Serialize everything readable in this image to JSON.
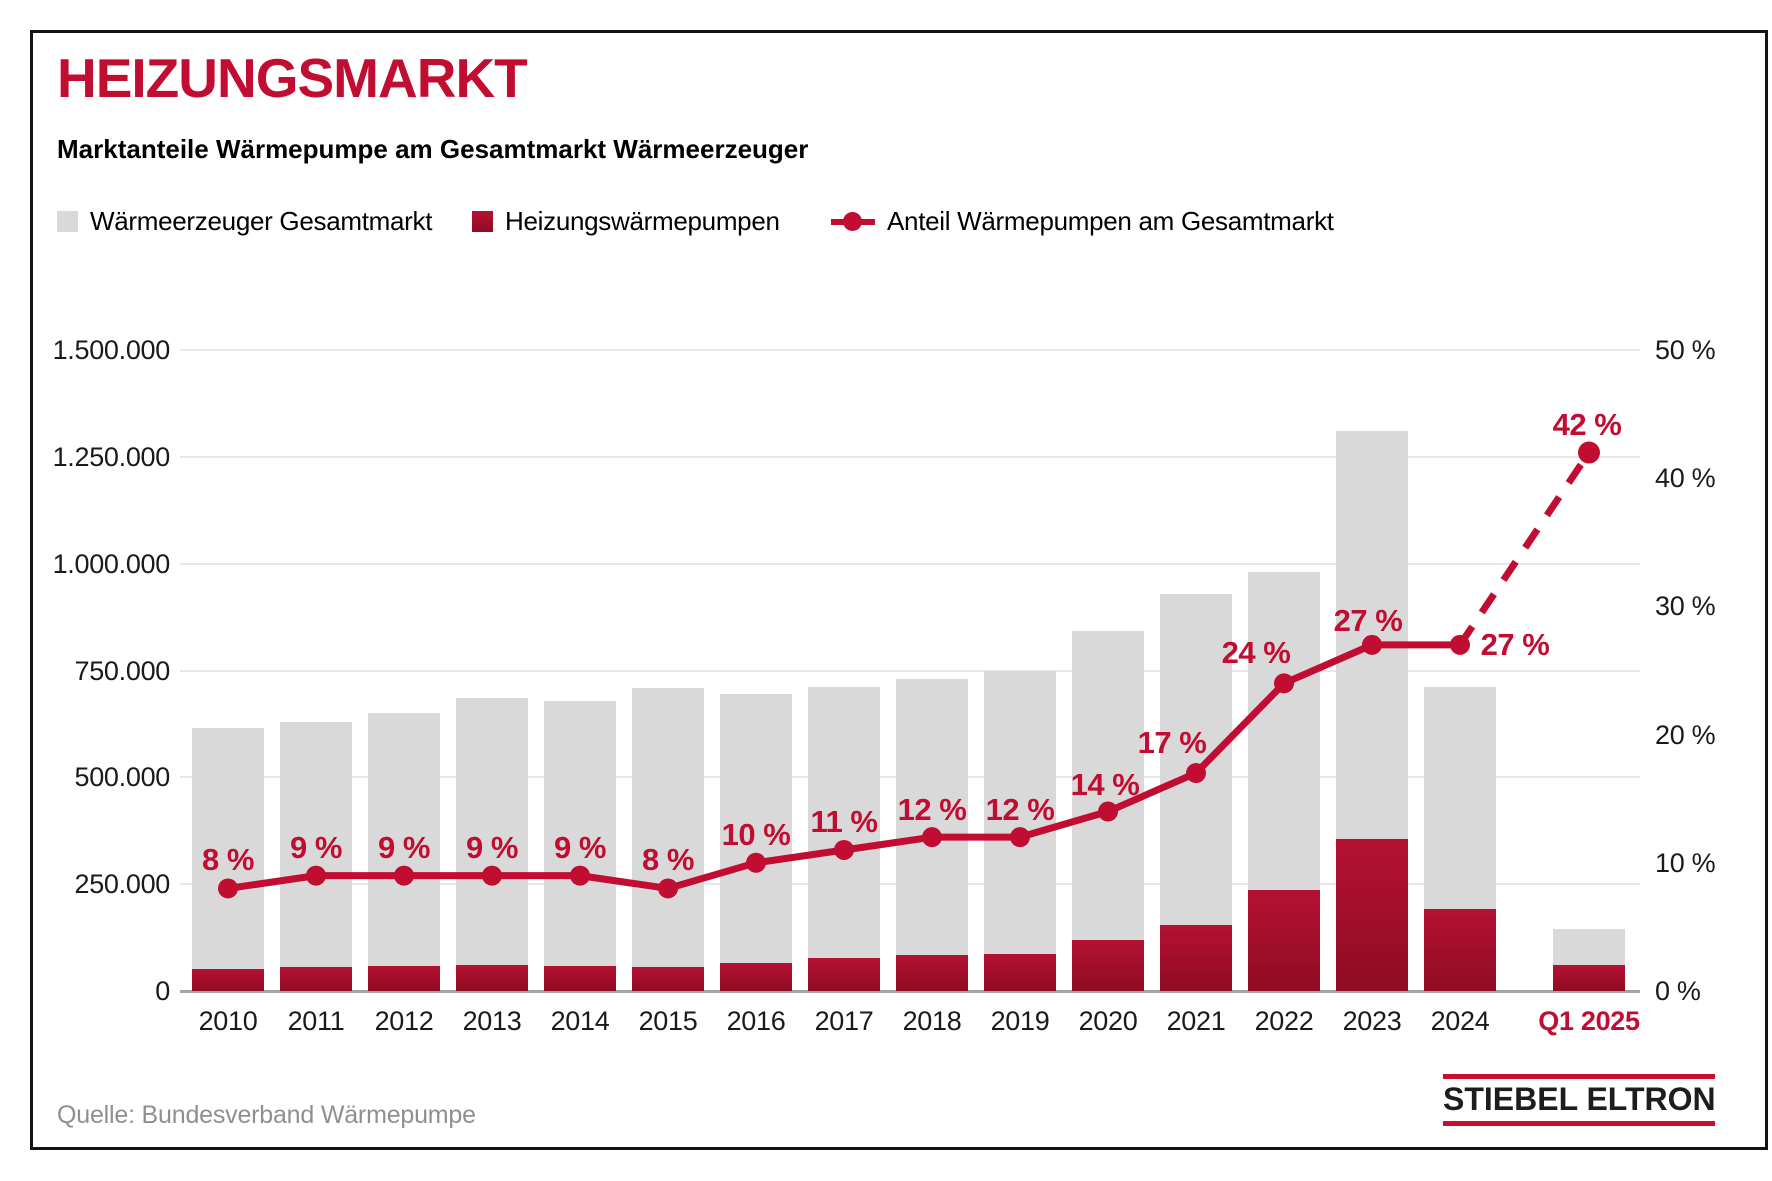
{
  "header": {
    "title": "HEIZUNGSMARKT",
    "subtitle": "Marktanteile Wärmepumpe am Gesamtmarkt Wärmeerzeuger"
  },
  "legend": [
    {
      "label": "Wärmeerzeuger Gesamtmarkt",
      "swatch": "grey-square",
      "color": "#d9d9d9"
    },
    {
      "label": "Heizungswärmepumpen",
      "swatch": "red-square",
      "color": "#a50e29"
    },
    {
      "label": "Anteil Wärmepumpen am Gesamtmarkt",
      "swatch": "line-marker",
      "color": "#c20d33"
    }
  ],
  "chart_data": {
    "type": "bar",
    "subtype": "combo-bar-line",
    "categories": [
      "2010",
      "2011",
      "2012",
      "2013",
      "2014",
      "2015",
      "2016",
      "2017",
      "2018",
      "2019",
      "2020",
      "2021",
      "2022",
      "2023",
      "2024",
      "Q1 2025"
    ],
    "highlight_category": "Q1 2025",
    "series": [
      {
        "name": "Wärmeerzeuger Gesamtmarkt",
        "type": "bar",
        "axis": "left",
        "color": "#d9d9d9",
        "values": [
          615000,
          630000,
          650000,
          686000,
          678000,
          710000,
          695000,
          712000,
          729000,
          750000,
          843000,
          929000,
          980000,
          1310000,
          712000,
          145000
        ]
      },
      {
        "name": "Heizungswärmepumpen",
        "type": "bar",
        "axis": "left",
        "color": "#a50e29",
        "values": [
          51000,
          57000,
          59500,
          60000,
          58000,
          57000,
          66500,
          78000,
          84000,
          86500,
          120000,
          154000,
          236000,
          356000,
          193000,
          62000
        ]
      },
      {
        "name": "Anteil Wärmepumpen am Gesamtmarkt",
        "type": "line",
        "axis": "right",
        "color": "#c20d33",
        "values": [
          8,
          9,
          9,
          9,
          9,
          8,
          10,
          11,
          12,
          12,
          14,
          17,
          24,
          27,
          27,
          42
        ],
        "point_labels": [
          "8 %",
          "9 %",
          "9 %",
          "9 %",
          "9 %",
          "8 %",
          "10 %",
          "11 %",
          "12 %",
          "12 %",
          "14 %",
          "17 %",
          "24 %",
          "27 %",
          "27 %",
          "42 %"
        ],
        "last_segment_dashed": true
      }
    ],
    "left_axis": {
      "max": 1500000,
      "ticks": [
        {
          "value": 0,
          "label": "0"
        },
        {
          "value": 250000,
          "label": "250.000"
        },
        {
          "value": 500000,
          "label": "500.000"
        },
        {
          "value": 750000,
          "label": "750.000"
        },
        {
          "value": 1000000,
          "label": "1.000.000"
        },
        {
          "value": 1250000,
          "label": "1.250.000"
        },
        {
          "value": 1500000,
          "label": "1.500.000"
        }
      ]
    },
    "right_axis": {
      "max": 50,
      "ticks": [
        {
          "value": 0,
          "label": "0 %"
        },
        {
          "value": 10,
          "label": "10 %"
        },
        {
          "value": 20,
          "label": "20 %"
        },
        {
          "value": 30,
          "label": "30 %"
        },
        {
          "value": 40,
          "label": "40 %"
        },
        {
          "value": 50,
          "label": "50 %"
        }
      ]
    },
    "grid": true,
    "legend_position": "top"
  },
  "footer": {
    "source": "Quelle: Bundesverband Wärmepumpe",
    "logo_text": "STIEBEL ELTRON"
  },
  "colors": {
    "accent_red": "#c20d33",
    "bar_red_top": "#b51132",
    "bar_red_bottom": "#8f0c22",
    "bar_grey": "#d9d9d9",
    "gridline": "#e8e8e8",
    "baseline": "#a5a5a5",
    "logo_red": "#c8102e",
    "source_grey": "#8f8f8f"
  }
}
